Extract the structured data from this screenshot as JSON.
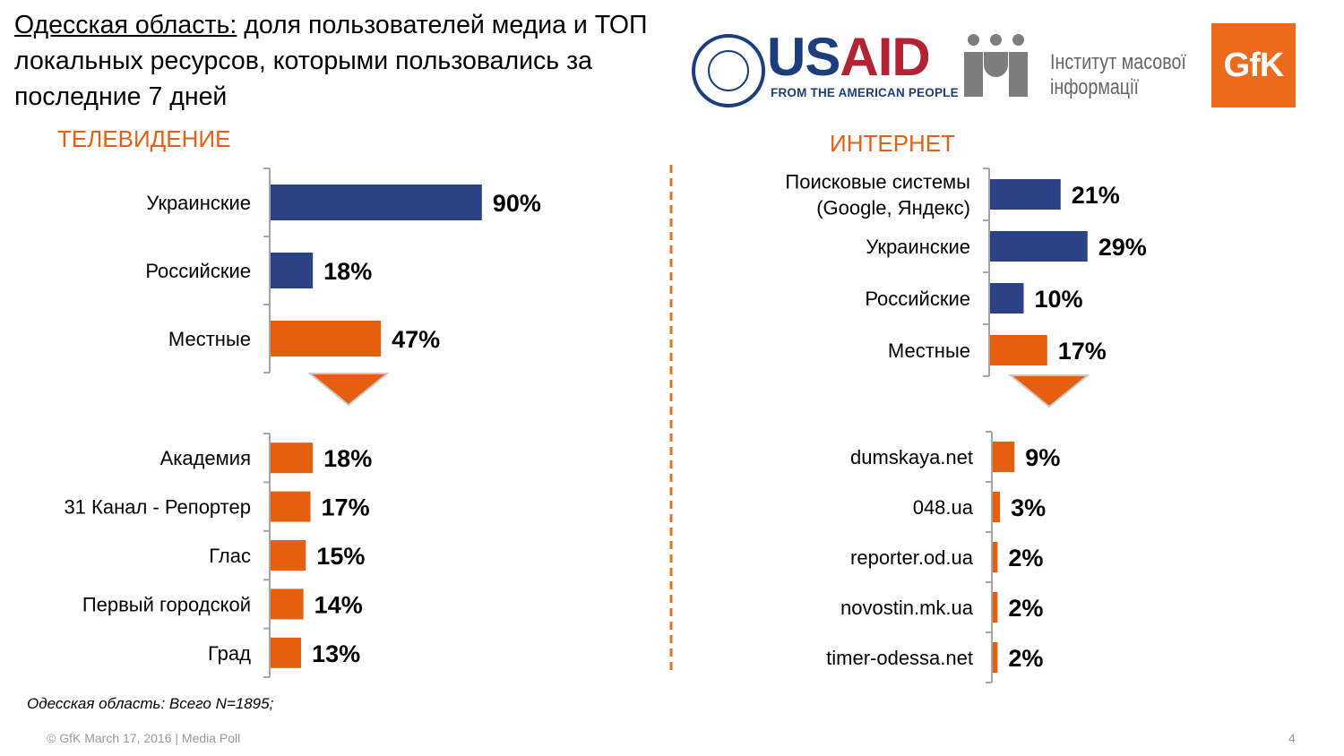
{
  "header": {
    "title_region": "Одесская область:",
    "title_rest": "доля пользователей медиа и ТОП локальных ресурсов, которыми пользовались за последние 7 дней"
  },
  "logos": {
    "usaid_us": "US",
    "usaid_aid": "AID",
    "usaid_tagline": "FROM THE AMERICAN PEOPLE",
    "imi_line1": "Інститут масової",
    "imi_line2": "інформації",
    "gfk": "GfK"
  },
  "sections": {
    "tv": "ТЕЛЕВИДЕНИЕ",
    "internet": "ИНТЕРНЕТ"
  },
  "colors": {
    "navy": "#2b4286",
    "orange": "#e45f0e",
    "divider": "#e2741e",
    "axis": "#a6a6a6"
  },
  "chart_data": [
    {
      "type": "bar",
      "orientation": "horizontal",
      "title": "ТЕЛЕВИДЕНИЕ",
      "categories": [
        "Украинские",
        "Российские",
        "Местные"
      ],
      "values": [
        90,
        18,
        47
      ],
      "labels": [
        "90%",
        "18%",
        "47%"
      ],
      "bar_colors": [
        "navy",
        "navy",
        "orange"
      ]
    },
    {
      "type": "bar",
      "orientation": "horizontal",
      "categories": [
        "Академия",
        "31 Канал - Репортер",
        "Глас",
        "Первый городской",
        "Град"
      ],
      "values": [
        18,
        17,
        15,
        14,
        13
      ],
      "labels": [
        "18%",
        "17%",
        "15%",
        "14%",
        "13%"
      ],
      "bar_colors": [
        "orange",
        "orange",
        "orange",
        "orange",
        "orange"
      ]
    },
    {
      "type": "bar",
      "orientation": "horizontal",
      "title": "ИНТЕРНЕТ",
      "categories": [
        [
          "Поисковые системы",
          "(Google, Яндекс)"
        ],
        "Украинские",
        "Российские",
        "Местные"
      ],
      "values": [
        21,
        29,
        10,
        17
      ],
      "labels": [
        "21%",
        "29%",
        "10%",
        "17%"
      ],
      "bar_colors": [
        "navy",
        "navy",
        "navy",
        "orange"
      ]
    },
    {
      "type": "bar",
      "orientation": "horizontal",
      "categories": [
        "dumskaya.net",
        "048.ua",
        "reporter.od.ua",
        "novostin.mk.ua",
        "timer-odessa.net"
      ],
      "values": [
        9,
        3,
        2,
        2,
        2
      ],
      "labels": [
        "9%",
        "3%",
        "2%",
        "2%",
        "2%"
      ],
      "bar_colors": [
        "orange",
        "orange",
        "orange",
        "orange",
        "orange"
      ]
    }
  ],
  "footnote": "Одесская область: Всего N=1895;",
  "footer": "© GfK March 17, 2016 | Media Poll",
  "page_number": "4"
}
